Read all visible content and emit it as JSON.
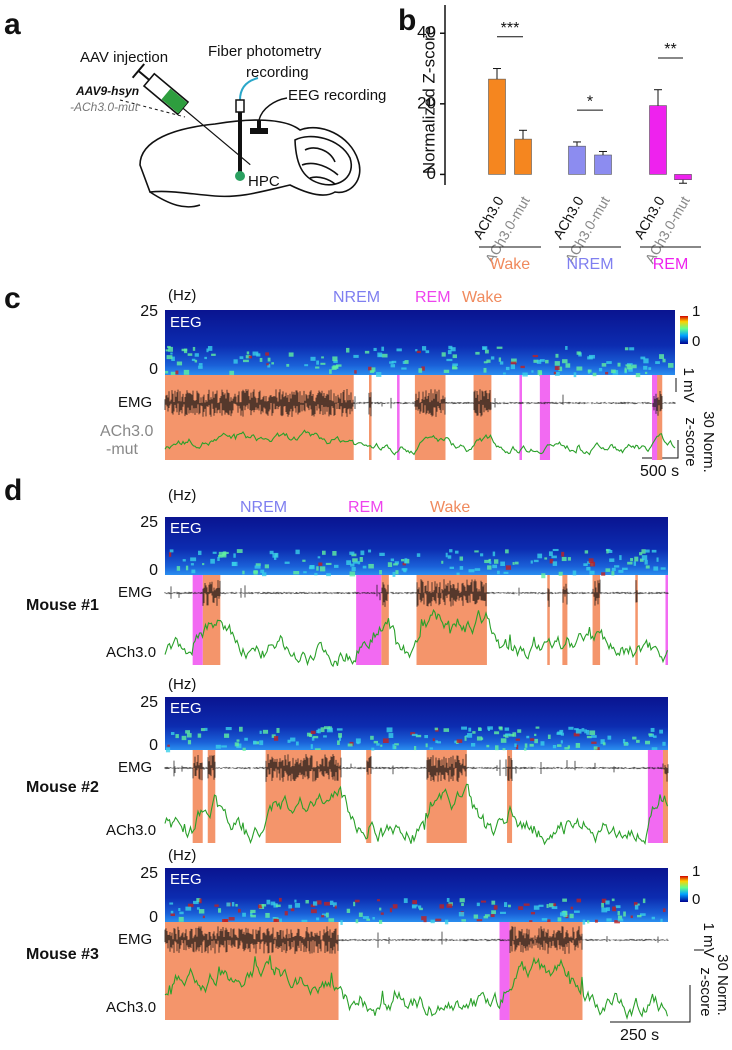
{
  "panel_labels": [
    "a",
    "b",
    "c",
    "d"
  ],
  "panel_a": {
    "injection": "AAV injection",
    "construct_line1": "AAV9-hsyn",
    "construct_line2": "-ACh3.0-mut",
    "photometry_line1": "Fiber photometry",
    "photometry_line2": "recording",
    "eeg": "EEG recording",
    "region": "HPC"
  },
  "chart_data": {
    "type": "bar",
    "y_label": "Normalized Z-score",
    "categories": [
      "ACh3.0",
      "ACh3.0-mut",
      "ACh3.0",
      "ACh3.0-mut",
      "ACh3.0",
      "ACh3.0-mut"
    ],
    "values": [
      27,
      10,
      8,
      5.5,
      19.5,
      -1.5
    ],
    "errors": [
      3,
      2.5,
      1.2,
      1,
      4.5,
      1
    ],
    "colors": [
      "#f5861f",
      "#f5861f",
      "#8c8cf0",
      "#8c8cf0",
      "#ee22ee",
      "#ee22ee"
    ],
    "groups": [
      {
        "name": "Wake",
        "color": "#f08a5d"
      },
      {
        "name": "NREM",
        "color": "#7f7ff0"
      },
      {
        "name": "REM",
        "color": "#ee22ee"
      }
    ],
    "significance": [
      "***",
      "*",
      "**"
    ],
    "ylim": [
      -3,
      48
    ],
    "yticks": [
      0,
      20,
      40
    ]
  },
  "panel_c": {
    "freq_unit": "(Hz)",
    "freq_top": "25",
    "freq_bottom": "0",
    "eeg": "EEG",
    "states": [
      "NREM",
      "REM",
      "Wake"
    ],
    "colorbar": [
      "1",
      "0"
    ],
    "emg": "EMG",
    "sensor_line1": "ACh3.0",
    "sensor_line2": "-mut",
    "emg_scale": "1 mV",
    "z_scale_line1": "30 Norm.",
    "z_scale_line2": "z-score",
    "time_scale": "500 s"
  },
  "panel_d": {
    "states": [
      "NREM",
      "REM",
      "Wake"
    ],
    "mice": [
      {
        "name": "Mouse #1",
        "freq_unit": "(Hz)",
        "freq_top": "25",
        "freq_bottom": "0",
        "eeg": "EEG",
        "emg": "EMG",
        "sensor": "ACh3.0"
      },
      {
        "name": "Mouse #2",
        "freq_unit": "(Hz)",
        "freq_top": "25",
        "freq_bottom": "0",
        "eeg": "EEG",
        "emg": "EMG",
        "sensor": "ACh3.0"
      },
      {
        "name": "Mouse #3",
        "freq_unit": "(Hz)",
        "freq_top": "25",
        "freq_bottom": "0",
        "eeg": "EEG",
        "emg": "EMG",
        "sensor": "ACh3.0"
      }
    ],
    "colorbar": [
      "1",
      "0"
    ],
    "emg_scale": "1 mV",
    "z_scale_line1": "30 Norm.",
    "z_scale_line2": "z-score",
    "time_scale": "250 s"
  }
}
